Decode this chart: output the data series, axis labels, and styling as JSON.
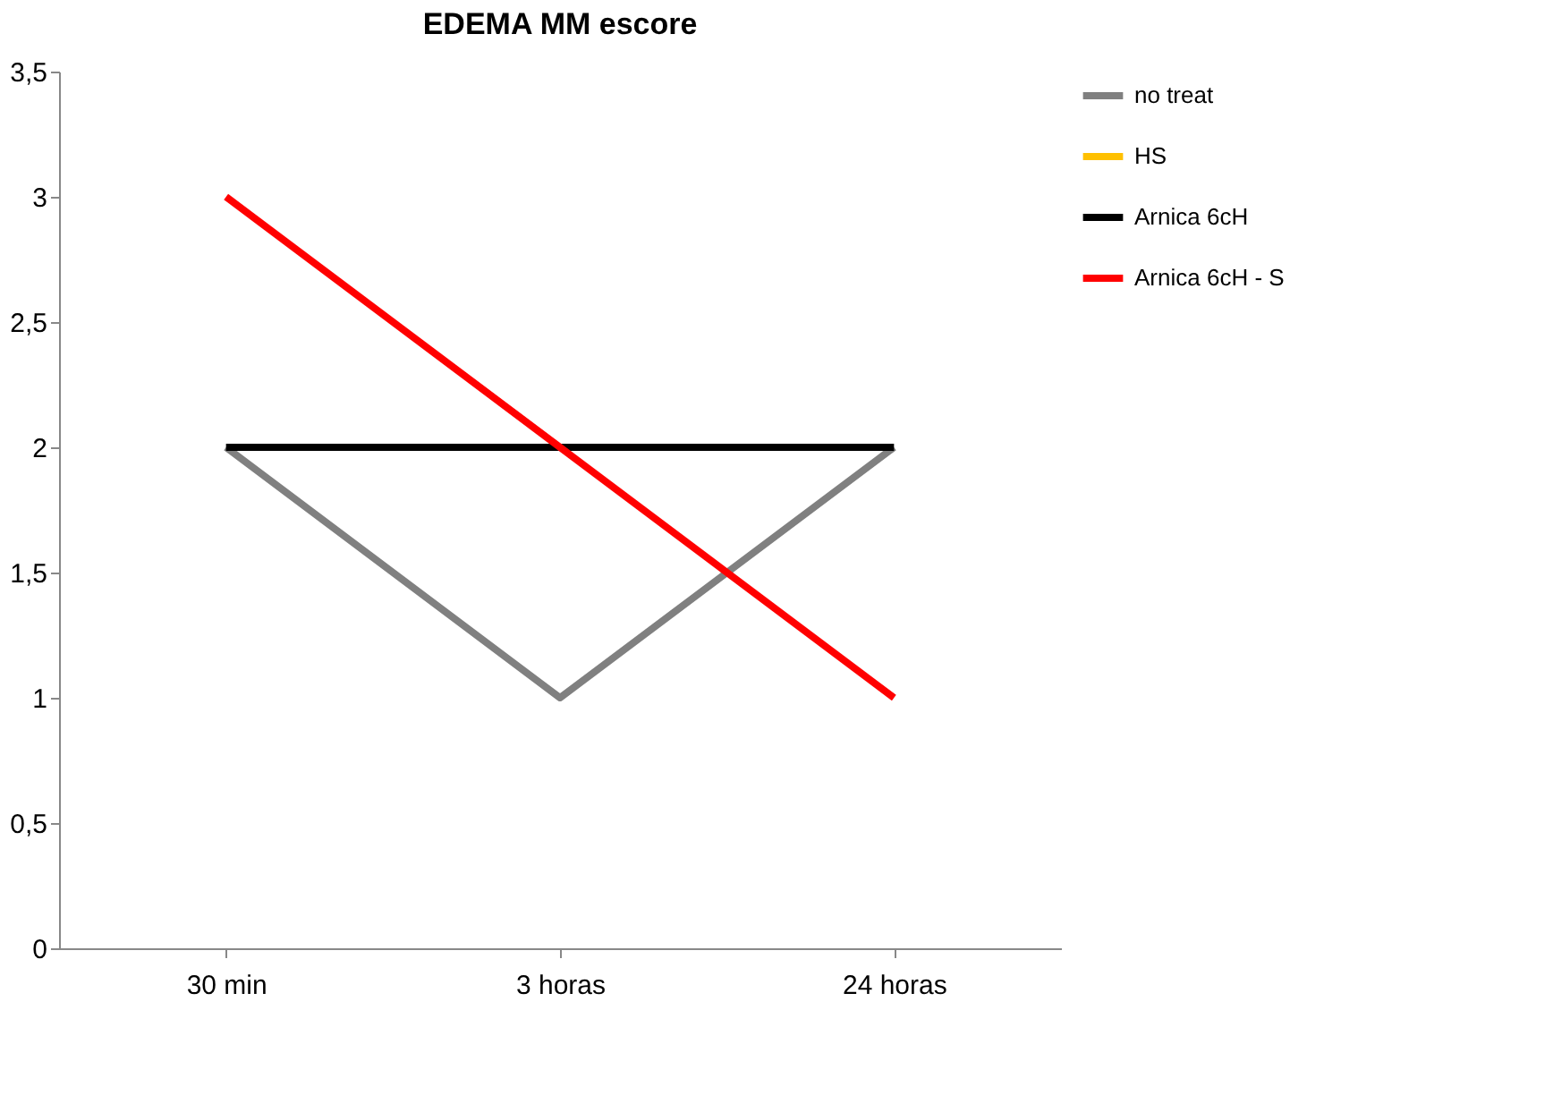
{
  "chart_data": {
    "type": "line",
    "title": "EDEMA MM escore",
    "categories": [
      "30 min",
      "3 horas",
      "24 horas"
    ],
    "series": [
      {
        "name": "no treat",
        "color": "#808080",
        "values": [
          2,
          1,
          2
        ]
      },
      {
        "name": "HS",
        "color": "#ffc000",
        "values": [
          null,
          null,
          null
        ]
      },
      {
        "name": "Arnica 6cH",
        "color": "#000000",
        "values": [
          2,
          2,
          2
        ]
      },
      {
        "name": "Arnica 6cH - S",
        "color": "#ff0000",
        "values": [
          3,
          2,
          1
        ]
      }
    ],
    "ylim": [
      0,
      3.5
    ],
    "yticks": [
      0,
      {
        "value": 0.5,
        "label": "0,5"
      },
      1,
      {
        "value": 1.5,
        "label": "1,5"
      },
      2,
      {
        "value": 2.5,
        "label": "2,5"
      },
      3,
      {
        "value": 3.5,
        "label": "3,5"
      }
    ],
    "grid": false,
    "legend": "right",
    "marker": "none",
    "line_style": "solid"
  }
}
